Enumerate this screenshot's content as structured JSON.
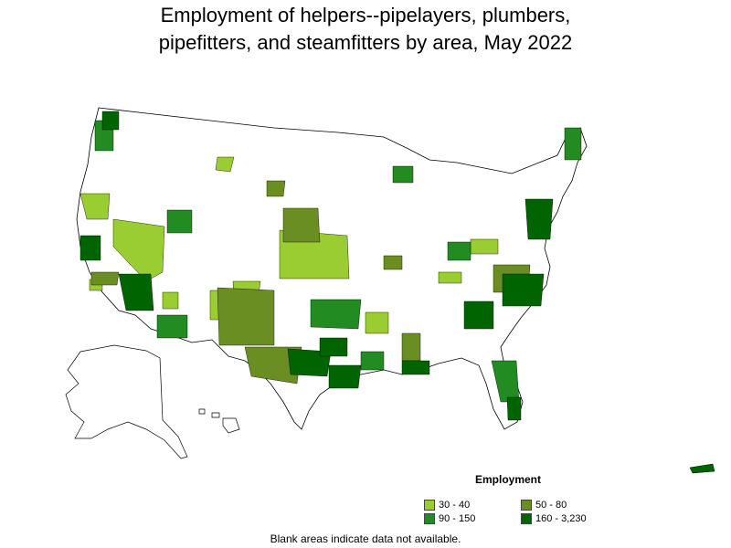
{
  "title_line1": "Employment of helpers--pipelayers, plumbers,",
  "title_line2": "pipefitters, and steamfitters by area, May 2022",
  "legend": {
    "title": "Employment",
    "items": [
      {
        "label": "30 - 40",
        "color": "#9acd32"
      },
      {
        "label": "50 - 80",
        "color": "#6b8e23"
      },
      {
        "label": "90 - 150",
        "color": "#228b22"
      },
      {
        "label": "160 - 3,230",
        "color": "#006400"
      }
    ]
  },
  "note": "Blank areas indicate data not available.",
  "colors": {
    "border": "#000000",
    "no_data": "#ffffff"
  }
}
